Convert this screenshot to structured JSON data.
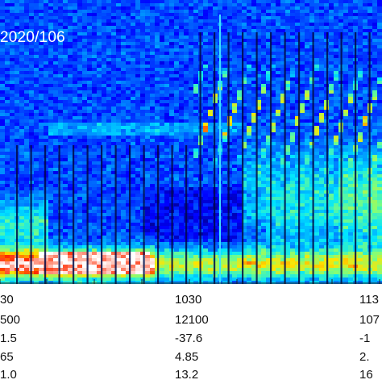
{
  "chart_data": {
    "type": "heatmap",
    "title": "2020/106",
    "xlabel": "",
    "ylabel": "",
    "colormap": [
      "#00007f",
      "#0000ff",
      "#0077ff",
      "#00e5ff",
      "#7dff7d",
      "#ffe500",
      "#ff2a00",
      "#ffffff"
    ],
    "tick_rows": [
      {
        "name": "row-1",
        "values": [
          "30",
          "1030",
          "113"
        ]
      },
      {
        "name": "row-2",
        "values": [
          "500",
          "12100",
          "107"
        ]
      },
      {
        "name": "row-3",
        "values": [
          "1.5",
          "-37.6",
          "-1"
        ]
      },
      {
        "name": "row-4",
        "values": [
          "65",
          "4.85",
          "2."
        ]
      },
      {
        "name": "row-5",
        "values": [
          "1.0",
          "13.2",
          "16"
        ]
      }
    ]
  }
}
